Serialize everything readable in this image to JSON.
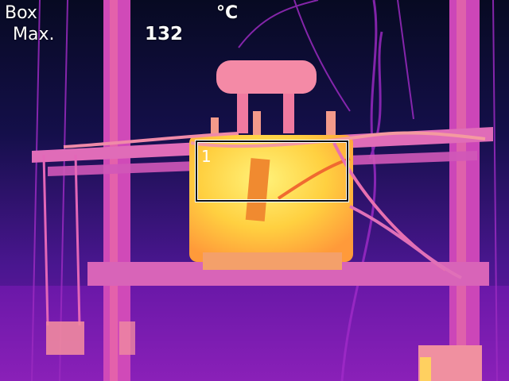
{
  "overlay": {
    "mode": "Box",
    "statistic": "Max.",
    "unit": "°C",
    "max_value": "132"
  },
  "measurement_box": {
    "id": "1"
  },
  "palette": {
    "cold": "#0a0c2a",
    "cool": "#4a1690",
    "mid": "#c02ad0",
    "warm": "#f06a9a",
    "hot": "#ffc23a",
    "hottest": "#fff27a"
  }
}
